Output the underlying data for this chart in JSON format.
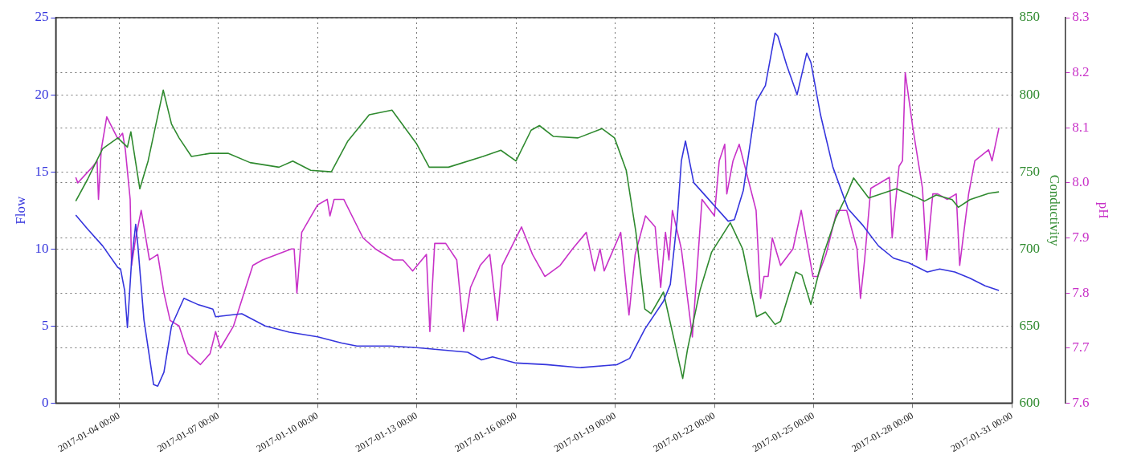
{
  "chart_data": {
    "type": "line",
    "ylabel": "Flow",
    "y2label": "Conductivity",
    "y3label": "pH",
    "xlim": [
      "2017-01-02T02:00",
      "2017-01-31T00:00"
    ],
    "xticks": [
      {
        "value": "2017-01-04T00:00",
        "label": "2017-01-04 00:00"
      },
      {
        "value": "2017-01-07T00:00",
        "label": "2017-01-07 00:00"
      },
      {
        "value": "2017-01-10T00:00",
        "label": "2017-01-10 00:00"
      },
      {
        "value": "2017-01-13T00:00",
        "label": "2017-01-13 00:00"
      },
      {
        "value": "2017-01-16T00:00",
        "label": "2017-01-16 00:00"
      },
      {
        "value": "2017-01-19T00:00",
        "label": "2017-01-19 00:00"
      },
      {
        "value": "2017-01-22T00:00",
        "label": "2017-01-22 00:00"
      },
      {
        "value": "2017-01-25T00:00",
        "label": "2017-01-25 00:00"
      },
      {
        "value": "2017-01-28T00:00",
        "label": "2017-01-28 00:00"
      },
      {
        "value": "2017-01-31T00:00",
        "label": "2017-01-31 00:00"
      }
    ],
    "ylim": [
      0,
      25
    ],
    "yticks": [
      0,
      5,
      10,
      15,
      20,
      25
    ],
    "y2lim": [
      600,
      850
    ],
    "y2ticks": [
      600,
      650,
      700,
      750,
      800,
      850
    ],
    "y3lim": [
      7.6,
      8.3
    ],
    "y3ticks": [
      {
        "value": 7.6,
        "label": "7.6"
      },
      {
        "value": 7.7,
        "label": "7.7"
      },
      {
        "value": 7.8,
        "label": "7.8"
      },
      {
        "value": 7.9,
        "label": "7.9"
      },
      {
        "value": 8,
        "label": "8.0"
      },
      {
        "value": 8.1,
        "label": "8.1"
      },
      {
        "value": 8.2,
        "label": "8.2"
      },
      {
        "value": 8.3,
        "label": "8.3"
      }
    ],
    "grid": true,
    "series": [
      {
        "color": "#3535dd",
        "axis": "y",
        "x": [
          "2017-01-02T16:30",
          "2017-01-03T01:00",
          "2017-01-03T12:00",
          "2017-01-03T23:00",
          "2017-01-04T01:00",
          "2017-01-04T04:00",
          "2017-01-04T06:00",
          "2017-01-04T09:00",
          "2017-01-04T12:00",
          "2017-01-04T13:30",
          "2017-01-04T18:00",
          "2017-01-05T01:00",
          "2017-01-05T04:00",
          "2017-01-05T08:30",
          "2017-01-05T14:00",
          "2017-01-05T23:00",
          "2017-01-06T09:00",
          "2017-01-06T20:00",
          "2017-01-06T22:00",
          "2017-01-07T17:00",
          "2017-01-08T10:00",
          "2017-01-09T03:30",
          "2017-01-10T00:00",
          "2017-01-10T17:30",
          "2017-01-11T04:30",
          "2017-01-11T18:00",
          "2017-01-12T05:00",
          "2017-01-13T00:00",
          "2017-01-14T13:00",
          "2017-01-14T23:00",
          "2017-01-15T07:00",
          "2017-01-16T00:00",
          "2017-01-16T22:00",
          "2017-01-17T23:00",
          "2017-01-19T01:30",
          "2017-01-19T10:30",
          "2017-01-19T21:30",
          "2017-01-20T11:00",
          "2017-01-20T16:00",
          "2017-01-20T21:00",
          "2017-01-21T00:00",
          "2017-01-21T03:00",
          "2017-01-21T09:00",
          "2017-01-21T18:00",
          "2017-01-22T10:00",
          "2017-01-22T14:30",
          "2017-01-22T21:00",
          "2017-01-23T06:30",
          "2017-01-23T13:00",
          "2017-01-23T20:00",
          "2017-01-23T22:00",
          "2017-01-24T04:30",
          "2017-01-24T12:00",
          "2017-01-24T19:00",
          "2017-01-24T22:00",
          "2017-01-25T05:00",
          "2017-01-25T14:00",
          "2017-01-26T01:00",
          "2017-01-26T12:00",
          "2017-01-26T23:00",
          "2017-01-27T10:00",
          "2017-01-27T21:00",
          "2017-01-28T10:30",
          "2017-01-28T19:30",
          "2017-01-29T06:30",
          "2017-01-29T17:30",
          "2017-01-30T04:30",
          "2017-01-30T14:30"
        ],
        "values": [
          12.2,
          11.3,
          10.2,
          8.8,
          8.7,
          7.3,
          4.9,
          9.2,
          11.6,
          10.3,
          5.4,
          1.2,
          1.1,
          2.0,
          5.0,
          6.8,
          6.4,
          6.1,
          5.6,
          5.8,
          5.0,
          4.6,
          4.3,
          3.9,
          3.7,
          3.7,
          3.7,
          3.6,
          3.3,
          2.8,
          3.0,
          2.6,
          2.5,
          2.3,
          2.5,
          2.9,
          4.8,
          6.6,
          7.7,
          11.9,
          15.7,
          17.0,
          14.3,
          13.4,
          11.8,
          11.9,
          13.8,
          19.6,
          20.6,
          24.0,
          23.8,
          21.9,
          20.0,
          22.7,
          22.1,
          18.7,
          15.3,
          12.6,
          11.5,
          10.2,
          9.4,
          9.1,
          8.5,
          8.7,
          8.5,
          8.1,
          7.6,
          7.3
        ]
      },
      {
        "color": "#2f8a2f",
        "axis": "y2",
        "x": [
          "2017-01-02T16:30",
          "2017-01-03T01:00",
          "2017-01-03T12:00",
          "2017-01-03T23:00",
          "2017-01-04T06:00",
          "2017-01-04T08:30",
          "2017-01-04T15:00",
          "2017-01-04T21:00",
          "2017-01-05T08:00",
          "2017-01-05T14:00",
          "2017-01-05T19:30",
          "2017-01-06T04:30",
          "2017-01-06T18:00",
          "2017-01-07T07:00",
          "2017-01-07T23:00",
          "2017-01-08T20:00",
          "2017-01-09T06:00",
          "2017-01-09T19:00",
          "2017-01-10T10:00",
          "2017-01-10T22:00",
          "2017-01-11T13:30",
          "2017-01-12T06:00",
          "2017-01-13T00:00",
          "2017-01-13T09:00",
          "2017-01-13T23:00",
          "2017-01-15T00:00",
          "2017-01-15T13:00",
          "2017-01-16T00:00",
          "2017-01-16T11:00",
          "2017-01-16T17:00",
          "2017-01-17T03:00",
          "2017-01-17T21:00",
          "2017-01-18T14:30",
          "2017-01-18T23:30",
          "2017-01-19T08:00",
          "2017-01-19T15:00",
          "2017-01-19T21:30",
          "2017-01-20T02:00",
          "2017-01-20T11:00",
          "2017-01-20T17:30",
          "2017-01-21T01:00",
          "2017-01-21T04:30",
          "2017-01-21T13:30",
          "2017-01-21T22:00",
          "2017-01-22T11:30",
          "2017-01-22T20:30",
          "2017-01-23T06:30",
          "2017-01-23T13:00",
          "2017-01-23T20:00",
          "2017-01-24T00:00",
          "2017-01-24T11:00",
          "2017-01-24T15:30",
          "2017-01-24T22:00",
          "2017-01-25T07:00",
          "2017-01-25T16:00",
          "2017-01-25T22:30",
          "2017-01-26T05:00",
          "2017-01-26T16:00",
          "2017-01-27T12:00",
          "2017-01-28T01:30",
          "2017-01-28T08:30",
          "2017-01-28T17:00",
          "2017-01-29T04:30",
          "2017-01-29T09:00",
          "2017-01-29T17:30",
          "2017-01-30T07:00",
          "2017-01-30T14:30"
        ],
        "values": [
          731,
          745,
          765,
          772,
          766,
          776,
          739,
          757,
          803,
          781,
          772,
          760,
          762,
          762,
          756,
          753,
          757,
          751,
          750,
          770,
          787,
          790,
          768,
          753,
          753,
          760,
          764,
          757,
          777,
          780,
          773,
          772,
          778,
          772,
          751,
          711,
          661,
          658,
          672,
          646,
          616,
          635,
          673,
          698,
          717,
          700,
          656,
          659,
          651,
          653,
          685,
          683,
          664,
          696,
          720,
          732,
          746,
          733,
          739,
          734,
          731,
          735,
          732,
          727,
          732,
          736,
          737
        ]
      },
      {
        "color": "#c832c8",
        "axis": "y3",
        "x": [
          "2017-01-02T16:30",
          "2017-01-02T18:00",
          "2017-01-03T05:00",
          "2017-01-03T08:00",
          "2017-01-03T09:00",
          "2017-01-03T11:00",
          "2017-01-03T15:00",
          "2017-01-03T23:00",
          "2017-01-04T02:30",
          "2017-01-04T04:30",
          "2017-01-04T08:00",
          "2017-01-04T09:00",
          "2017-01-04T12:00",
          "2017-01-04T16:00",
          "2017-01-04T22:00",
          "2017-01-05T04:00",
          "2017-01-05T08:30",
          "2017-01-05T13:00",
          "2017-01-05T19:30",
          "2017-01-06T02:00",
          "2017-01-06T11:00",
          "2017-01-06T18:00",
          "2017-01-06T22:00",
          "2017-01-07T01:30",
          "2017-01-07T11:00",
          "2017-01-08T01:00",
          "2017-01-08T08:00",
          "2017-01-09T05:00",
          "2017-01-09T07:00",
          "2017-01-09T09:00",
          "2017-01-09T12:30",
          "2017-01-10T00:00",
          "2017-01-10T07:00",
          "2017-01-10T09:00",
          "2017-01-10T12:00",
          "2017-01-10T19:00",
          "2017-01-11T09:00",
          "2017-01-11T18:00",
          "2017-01-12T07:00",
          "2017-01-12T14:00",
          "2017-01-12T21:00",
          "2017-01-13T07:00",
          "2017-01-13T09:30",
          "2017-01-13T13:00",
          "2017-01-13T21:00",
          "2017-01-14T05:00",
          "2017-01-14T10:00",
          "2017-01-14T15:00",
          "2017-01-14T22:00",
          "2017-01-15T05:00",
          "2017-01-15T10:30",
          "2017-01-15T14:00",
          "2017-01-16T04:00",
          "2017-01-16T12:00",
          "2017-01-16T21:00",
          "2017-01-17T08:00",
          "2017-01-17T17:00",
          "2017-01-18T03:00",
          "2017-01-18T09:00",
          "2017-01-18T13:00",
          "2017-01-18T16:00",
          "2017-01-19T04:00",
          "2017-01-19T10:00",
          "2017-01-19T14:30",
          "2017-01-19T22:00",
          "2017-01-20T05:00",
          "2017-01-20T09:00",
          "2017-01-20T12:30",
          "2017-01-20T15:00",
          "2017-01-20T17:30",
          "2017-01-21T00:00",
          "2017-01-21T08:00",
          "2017-01-21T15:00",
          "2017-01-22T00:00",
          "2017-01-22T03:30",
          "2017-01-22T07:30",
          "2017-01-22T09:00",
          "2017-01-22T13:30",
          "2017-01-22T18:00",
          "2017-01-23T06:15",
          "2017-01-23T09:30",
          "2017-01-23T12:00",
          "2017-01-23T15:00",
          "2017-01-23T18:00",
          "2017-01-24T00:00",
          "2017-01-24T09:00",
          "2017-01-24T15:00",
          "2017-01-24T23:30",
          "2017-01-25T03:00",
          "2017-01-25T09:00",
          "2017-01-25T17:00",
          "2017-01-26T00:00",
          "2017-01-26T07:30",
          "2017-01-26T10:00",
          "2017-01-26T13:00",
          "2017-01-26T17:30",
          "2017-01-27T07:00",
          "2017-01-27T09:00",
          "2017-01-27T14:00",
          "2017-01-27T16:30",
          "2017-01-27T18:30",
          "2017-01-28T00:00",
          "2017-01-28T07:00",
          "2017-01-28T10:00",
          "2017-01-28T14:30",
          "2017-01-28T18:00",
          "2017-01-29T01:00",
          "2017-01-29T07:30",
          "2017-01-29T10:00",
          "2017-01-29T16:30",
          "2017-01-29T21:00",
          "2017-01-30T07:00",
          "2017-01-30T09:30",
          "2017-01-30T14:30"
        ],
        "values": [
          8.01,
          8.0,
          8.03,
          8.04,
          7.97,
          8.06,
          8.12,
          8.08,
          8.09,
          8.06,
          7.97,
          7.85,
          7.9,
          7.95,
          7.86,
          7.87,
          7.8,
          7.75,
          7.74,
          7.69,
          7.67,
          7.69,
          7.73,
          7.7,
          7.74,
          7.85,
          7.86,
          7.88,
          7.88,
          7.8,
          7.91,
          7.96,
          7.97,
          7.94,
          7.97,
          7.97,
          7.9,
          7.88,
          7.86,
          7.86,
          7.84,
          7.87,
          7.73,
          7.89,
          7.89,
          7.86,
          7.73,
          7.81,
          7.85,
          7.87,
          7.75,
          7.85,
          7.92,
          7.87,
          7.83,
          7.85,
          7.88,
          7.91,
          7.84,
          7.88,
          7.84,
          7.91,
          7.76,
          7.87,
          7.94,
          7.92,
          7.81,
          7.91,
          7.86,
          7.95,
          7.88,
          7.72,
          7.97,
          7.94,
          8.04,
          8.07,
          7.98,
          8.04,
          8.07,
          7.95,
          7.79,
          7.83,
          7.83,
          7.9,
          7.85,
          7.88,
          7.95,
          7.83,
          7.83,
          7.87,
          7.95,
          7.95,
          7.88,
          7.79,
          7.86,
          7.99,
          8.01,
          7.9,
          8.03,
          8.04,
          8.2,
          8.1,
          7.99,
          7.86,
          7.98,
          7.98,
          7.97,
          7.98,
          7.85,
          7.98,
          8.04,
          8.06,
          8.04,
          8.1
        ]
      }
    ]
  }
}
